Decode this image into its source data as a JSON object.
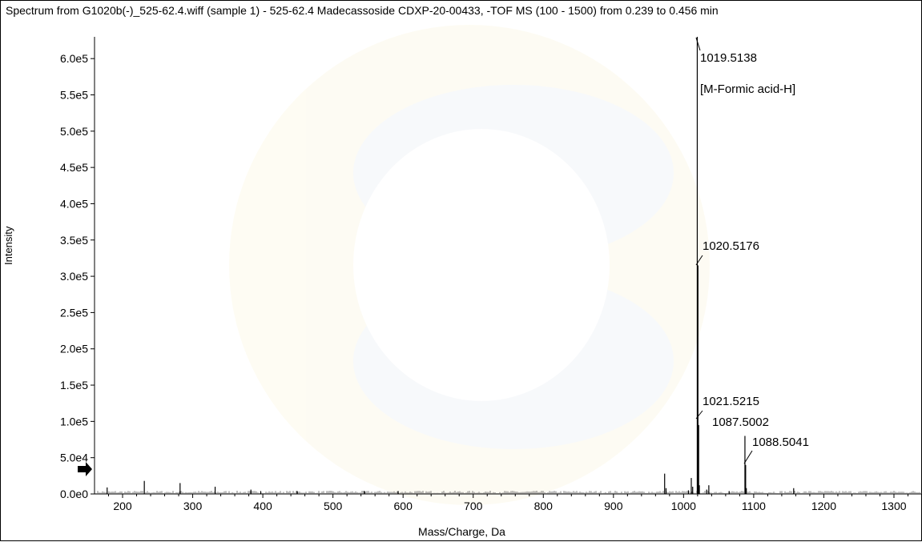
{
  "title": "Spectrum from G1020b(-)_525-62.4.wiff (sample 1) - 525-62.4 Madecassoside CDXP-20-00433, -TOF MS (100 - 1500) from 0.239 to 0.456 min",
  "chart_data": {
    "type": "bar",
    "xlabel": "Mass/Charge, Da",
    "ylabel": "Intensity",
    "xlim": [
      160,
      1340
    ],
    "ylim": [
      0,
      630000
    ],
    "x_ticks": [
      200,
      300,
      400,
      500,
      600,
      700,
      800,
      900,
      1000,
      1100,
      1200,
      1300
    ],
    "y_ticks": [
      0,
      50000,
      100000,
      150000,
      200000,
      250000,
      300000,
      350000,
      400000,
      450000,
      500000,
      550000,
      600000
    ],
    "y_tick_labels": [
      "0.0e0",
      "5.0e4",
      "1.0e5",
      "1.5e5",
      "2.0e5",
      "2.5e5",
      "3.0e5",
      "3.5e5",
      "4.0e5",
      "4.5e5",
      "5.0e5",
      "5.5e5",
      "6.0e5"
    ],
    "peaks": [
      {
        "mz": 178,
        "intensity": 9000
      },
      {
        "mz": 231,
        "intensity": 18000
      },
      {
        "mz": 282,
        "intensity": 15000
      },
      {
        "mz": 332,
        "intensity": 10000
      },
      {
        "mz": 383,
        "intensity": 6000
      },
      {
        "mz": 397,
        "intensity": 4000
      },
      {
        "mz": 449,
        "intensity": 4000
      },
      {
        "mz": 545,
        "intensity": 4000
      },
      {
        "mz": 593,
        "intensity": 4000
      },
      {
        "mz": 973,
        "intensity": 28000
      },
      {
        "mz": 975,
        "intensity": 8000
      },
      {
        "mz": 1007,
        "intensity": 5000
      },
      {
        "mz": 1011,
        "intensity": 22000
      },
      {
        "mz": 1013,
        "intensity": 10000
      },
      {
        "mz": 1019.5138,
        "intensity": 630000
      },
      {
        "mz": 1020.5176,
        "intensity": 315000
      },
      {
        "mz": 1021.5215,
        "intensity": 95000
      },
      {
        "mz": 1022.5,
        "intensity": 12000
      },
      {
        "mz": 1033,
        "intensity": 6000
      },
      {
        "mz": 1036,
        "intensity": 12000
      },
      {
        "mz": 1065,
        "intensity": 4000
      },
      {
        "mz": 1087.5002,
        "intensity": 80000
      },
      {
        "mz": 1088.5041,
        "intensity": 40000
      },
      {
        "mz": 1089.5,
        "intensity": 8000
      },
      {
        "mz": 1157,
        "intensity": 8000
      }
    ],
    "annotations": [
      {
        "text": "1019.5138",
        "mz": 1019.5138
      },
      {
        "text": "[M-Formic acid-H]",
        "mz": 1019.5138
      },
      {
        "text": "1020.5176",
        "mz": 1020.5176
      },
      {
        "text": "1021.5215",
        "mz": 1021.5215
      },
      {
        "text": "1087.5002",
        "mz": 1087.5002
      },
      {
        "text": "1088.5041",
        "mz": 1088.5041
      }
    ],
    "grid": false,
    "legend": "none"
  }
}
